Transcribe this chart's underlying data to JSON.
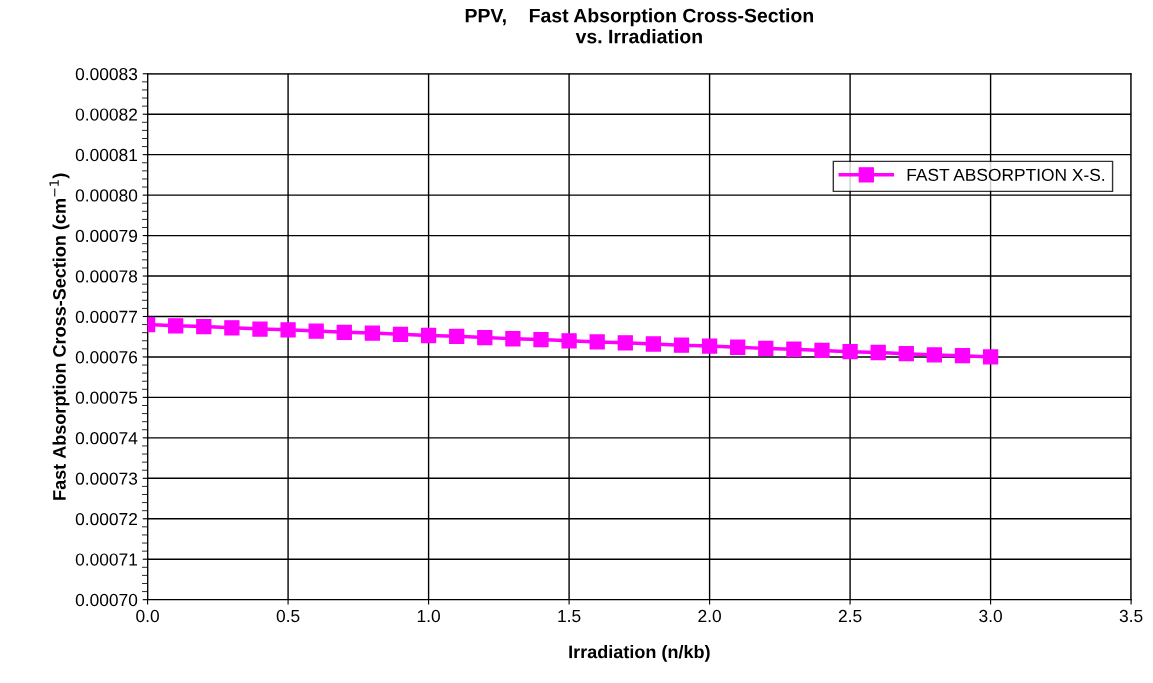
{
  "chart_data": {
    "type": "line",
    "title": "PPV,    Fast Absorption Cross-Section\nvs. Irradiation",
    "xlabel": "Irradiation (n/kb)",
    "ylabel": "Fast Absorption Cross-Section (cm$^{−1}$)",
    "x": [
      0.0,
      0.1,
      0.2,
      0.3,
      0.4,
      0.5,
      0.6,
      0.7,
      0.8,
      0.9,
      1.0,
      1.1,
      1.2,
      1.3,
      1.4,
      1.5,
      1.6,
      1.7,
      1.8,
      1.9,
      2.0,
      2.1,
      2.2,
      2.3,
      2.4,
      2.5,
      2.6,
      2.7,
      2.8,
      2.9,
      3.0
    ],
    "series": [
      {
        "name": "FAST ABSORPTION X-S.",
        "color": "#ff00ff",
        "values": [
          0.000768,
          0.0007677,
          0.0007675,
          0.0007672,
          0.0007669,
          0.0007667,
          0.0007664,
          0.0007661,
          0.0007659,
          0.0007656,
          0.0007653,
          0.0007651,
          0.0007648,
          0.0007645,
          0.0007643,
          0.000764,
          0.0007637,
          0.0007635,
          0.0007632,
          0.0007629,
          0.0007627,
          0.0007624,
          0.0007621,
          0.0007619,
          0.0007616,
          0.0007613,
          0.0007611,
          0.0007608,
          0.0007605,
          0.0007603,
          0.00076
        ]
      }
    ],
    "xlim": [
      0,
      3.5
    ],
    "xticks": [
      {
        "value": 0,
        "label": "0.0"
      },
      {
        "value": 0.5,
        "label": "0.5"
      },
      {
        "value": 1,
        "label": "1.0"
      },
      {
        "value": 1.5,
        "label": "1.5"
      },
      {
        "value": 2,
        "label": "2.0"
      },
      {
        "value": 2.5,
        "label": "2.5"
      },
      {
        "value": 3,
        "label": "3.0"
      },
      {
        "value": 3.5,
        "label": "3.5"
      }
    ],
    "ylim": [
      0.0007,
      0.00083
    ],
    "yticks": [
      {
        "value": 0.0007,
        "label": "0.00070"
      },
      {
        "value": 0.00071,
        "label": "0.00071"
      },
      {
        "value": 0.00072,
        "label": "0.00072"
      },
      {
        "value": 0.00073,
        "label": "0.00073"
      },
      {
        "value": 0.00074,
        "label": "0.00074"
      },
      {
        "value": 0.00075,
        "label": "0.00075"
      },
      {
        "value": 0.00076,
        "label": "0.00076"
      },
      {
        "value": 0.00077,
        "label": "0.00077"
      },
      {
        "value": 0.00078,
        "label": "0.00078"
      },
      {
        "value": 0.00079,
        "label": "0.00079"
      },
      {
        "value": 0.0008,
        "label": "0.00080"
      },
      {
        "value": 0.00081,
        "label": "0.00081"
      },
      {
        "value": 0.00082,
        "label": "0.00082"
      },
      {
        "value": 0.00083,
        "label": "0.00083"
      }
    ],
    "grid": true,
    "legend": "top right",
    "marker": "square",
    "line_style": "solid"
  }
}
